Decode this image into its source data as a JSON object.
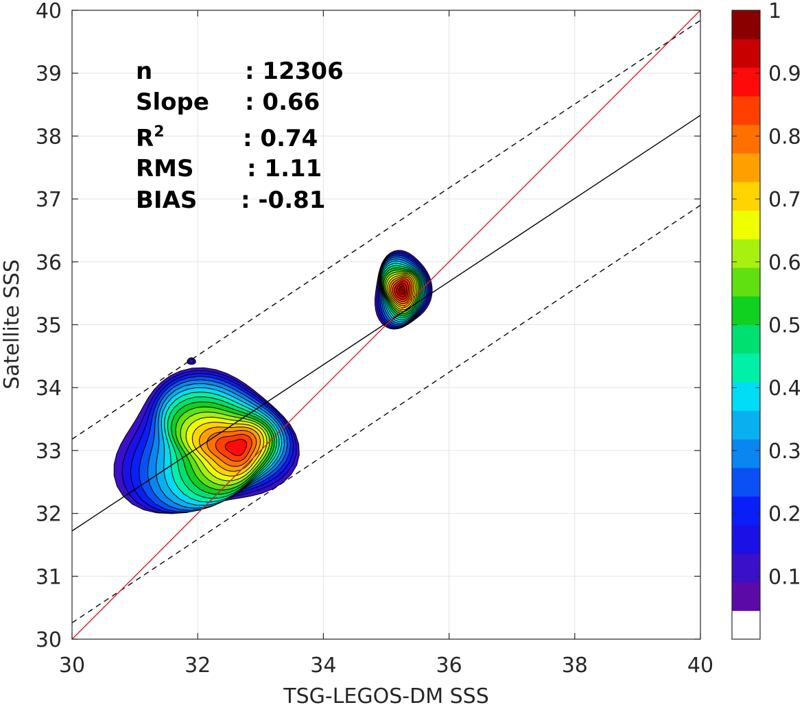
{
  "chart_data": {
    "type": "contour",
    "xlabel": "TSG-LEGOS-DM SSS",
    "ylabel": "Satellite SSS",
    "xlim": [
      30,
      40
    ],
    "ylim": [
      30,
      40
    ],
    "x_ticks": [
      "30",
      "32",
      "34",
      "36",
      "38",
      "40"
    ],
    "y_ticks": [
      "30",
      "31",
      "32",
      "33",
      "34",
      "35",
      "36",
      "37",
      "38",
      "39",
      "40"
    ],
    "grid": true,
    "stats": [
      {
        "label": "n",
        "value": ": 12306"
      },
      {
        "label": "Slope",
        "value": ": 0.66"
      },
      {
        "label": "R",
        "sup": "2",
        "value": ": 0.74"
      },
      {
        "label": "RMS",
        "value": ": 1.11"
      },
      {
        "label": "BIAS",
        "value": ": -0.81"
      }
    ],
    "lines": {
      "identity": {
        "color": "#e01b1b",
        "points": [
          [
            30,
            30
          ],
          [
            40,
            40
          ]
        ]
      },
      "regression": {
        "color": "#000000",
        "points": [
          [
            30,
            31.72
          ],
          [
            40,
            38.33
          ]
        ]
      },
      "upper_dashed": {
        "color": "#000000",
        "points": [
          [
            30,
            33.18
          ],
          [
            40,
            39.84
          ]
        ]
      },
      "lower_dashed": {
        "color": "#000000",
        "points": [
          [
            30,
            30.26
          ],
          [
            40,
            36.9
          ]
        ]
      }
    },
    "density_peaks": [
      {
        "x": 32.1,
        "y": 33.1,
        "max": 0.9
      },
      {
        "x": 35.25,
        "y": 35.55,
        "max": 1.0
      },
      {
        "x": 31.9,
        "y": 34.42,
        "max": 0.1
      }
    ],
    "colorbar": {
      "range": [
        0,
        1
      ],
      "tick_labels": [
        "0.1",
        "0.2",
        "0.3",
        "0.4",
        "0.5",
        "0.6",
        "0.7",
        "0.8",
        "0.9",
        "1"
      ],
      "tick_values": [
        0.1,
        0.2,
        0.3,
        0.4,
        0.5,
        0.6,
        0.7,
        0.8,
        0.9,
        1.0
      ],
      "colors": [
        "#ffffff",
        "#5b0aa8",
        "#3a10c8",
        "#1b10e6",
        "#0a1ef8",
        "#0a50f5",
        "#0a86f0",
        "#08b0f0",
        "#00dcf4",
        "#00f0a8",
        "#00e070",
        "#10d020",
        "#60e010",
        "#a8f010",
        "#f0ff00",
        "#ffd400",
        "#ffa000",
        "#ff7000",
        "#ff4000",
        "#ff0a0a",
        "#c80000",
        "#8a0000"
      ]
    }
  }
}
